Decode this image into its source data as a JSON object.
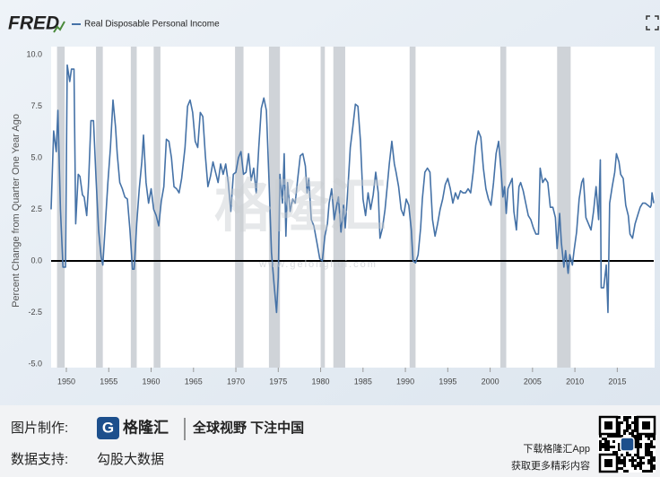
{
  "chart_data": {
    "type": "line",
    "logo": "FRED",
    "ylabel": "Percent Change from Quarter One Year Ago",
    "xlim": [
      1948.2,
      2019.3
    ],
    "xticks": [
      1950,
      1955,
      1960,
      1965,
      1970,
      1975,
      1980,
      1985,
      1990,
      1995,
      2000,
      2005,
      2010,
      2015
    ],
    "ylim": [
      -5,
      10
    ],
    "yticks": [
      {
        "value": -5,
        "label": "-5.0"
      },
      -2.5,
      {
        "value": 0,
        "label": "0.0"
      },
      2.5,
      {
        "value": 5,
        "label": "5.0"
      },
      7.5,
      {
        "value": 10,
        "label": "10.0"
      }
    ],
    "grid": false,
    "zero_line": true,
    "recession_color": "#cfd3d8",
    "recessions": [
      [
        1948.9,
        1949.8
      ],
      [
        1953.5,
        1954.3
      ],
      [
        1957.6,
        1958.3
      ],
      [
        1960.3,
        1961.1
      ],
      [
        1969.9,
        1970.9
      ],
      [
        1973.9,
        1975.2
      ],
      [
        1980.0,
        1980.5
      ],
      [
        1981.5,
        1982.9
      ],
      [
        1990.5,
        1991.2
      ],
      [
        2001.2,
        2001.9
      ],
      [
        2007.9,
        2009.5
      ]
    ],
    "x": [
      1948.2,
      1948.5,
      1948.8,
      1949.0,
      1949.3,
      1949.6,
      1949.9,
      1950.1,
      1950.4,
      1950.6,
      1950.9,
      1951.1,
      1951.4,
      1951.6,
      1951.9,
      1952.1,
      1952.4,
      1952.6,
      1952.9,
      1953.2,
      1953.5,
      1953.8,
      1954.1,
      1954.3,
      1954.6,
      1954.9,
      1955.2,
      1955.5,
      1955.8,
      1956.0,
      1956.3,
      1956.6,
      1956.9,
      1957.2,
      1957.5,
      1957.8,
      1958.0,
      1958.3,
      1958.6,
      1958.9,
      1959.1,
      1959.4,
      1959.7,
      1960.0,
      1960.3,
      1960.6,
      1960.9,
      1961.2,
      1961.5,
      1961.8,
      1962.1,
      1962.4,
      1962.7,
      1963.0,
      1963.3,
      1963.6,
      1964.0,
      1964.3,
      1964.6,
      1964.9,
      1965.2,
      1965.5,
      1965.8,
      1966.1,
      1966.4,
      1966.7,
      1967.0,
      1967.3,
      1967.6,
      1967.9,
      1968.2,
      1968.5,
      1968.8,
      1969.1,
      1969.4,
      1969.7,
      1970.0,
      1970.3,
      1970.6,
      1970.9,
      1971.2,
      1971.5,
      1971.8,
      1972.1,
      1972.4,
      1972.7,
      1973.0,
      1973.3,
      1973.6,
      1973.9,
      1974.2,
      1974.5,
      1974.8,
      1975.0,
      1975.2,
      1975.5,
      1975.7,
      1975.9,
      1976.1,
      1976.4,
      1976.7,
      1977.0,
      1977.3,
      1977.6,
      1977.9,
      1978.2,
      1978.4,
      1978.6,
      1978.9,
      1979.2,
      1979.6,
      1979.9,
      1980.2,
      1980.5,
      1980.8,
      1981.0,
      1981.3,
      1981.6,
      1981.9,
      1982.1,
      1982.4,
      1982.7,
      1982.9,
      1983.2,
      1983.5,
      1983.8,
      1984.1,
      1984.4,
      1984.7,
      1985.0,
      1985.3,
      1985.6,
      1985.9,
      1986.2,
      1986.5,
      1986.8,
      1987.0,
      1987.3,
      1987.6,
      1987.9,
      1988.1,
      1988.4,
      1988.7,
      1988.9,
      1989.2,
      1989.5,
      1989.8,
      1990.1,
      1990.4,
      1990.7,
      1990.9,
      1991.2,
      1991.5,
      1991.8,
      1992.0,
      1992.3,
      1992.6,
      1992.9,
      1993.2,
      1993.5,
      1993.8,
      1994.1,
      1994.4,
      1994.7,
      1995.0,
      1995.3,
      1995.6,
      1995.9,
      1996.2,
      1996.5,
      1996.8,
      1997.1,
      1997.4,
      1997.7,
      1998.0,
      1998.3,
      1998.6,
      1998.9,
      1999.2,
      1999.5,
      1999.8,
      2000.1,
      2000.4,
      2000.7,
      2001.0,
      2001.3,
      2001.5,
      2001.7,
      2001.9,
      2002.1,
      2002.4,
      2002.6,
      2002.8,
      2003.1,
      2003.4,
      2003.6,
      2003.9,
      2004.2,
      2004.5,
      2004.8,
      2005.1,
      2005.4,
      2005.7,
      2005.9,
      2006.2,
      2006.5,
      2006.8,
      2007.1,
      2007.4,
      2007.7,
      2007.9,
      2008.2,
      2008.4,
      2008.7,
      2008.9,
      2009.2,
      2009.4,
      2009.7,
      2009.9,
      2010.2,
      2010.5,
      2010.8,
      2011.0,
      2011.3,
      2011.6,
      2011.9,
      2012.2,
      2012.5,
      2012.8,
      2013.0,
      2013.1,
      2013.4,
      2013.7,
      2013.9,
      2014.1,
      2014.4,
      2014.7,
      2014.9,
      2015.2,
      2015.4,
      2015.7,
      2016.0,
      2016.3,
      2016.5,
      2016.8,
      2017.1,
      2017.4,
      2017.7,
      2018.0,
      2018.3,
      2018.6,
      2018.9,
      2019.0,
      2019.1,
      2019.3
    ],
    "series": [
      {
        "name": "Real Disposable Personal Income",
        "color": "#4572a7",
        "values": [
          2.5,
          6.3,
          5.3,
          7.3,
          2.5,
          -0.3,
          -0.3,
          9.5,
          8.7,
          9.3,
          9.3,
          1.8,
          4.2,
          4.1,
          3.2,
          3.1,
          2.2,
          3.6,
          6.8,
          6.8,
          4.0,
          1.5,
          0.2,
          -0.2,
          1.8,
          3.8,
          5.5,
          7.8,
          6.5,
          5.2,
          3.8,
          3.5,
          3.1,
          3.0,
          1.5,
          -0.4,
          -0.4,
          1.8,
          3.5,
          4.8,
          6.1,
          3.8,
          2.8,
          3.5,
          2.5,
          2.2,
          1.7,
          2.9,
          3.6,
          5.9,
          5.8,
          5.0,
          3.6,
          3.5,
          3.3,
          4.0,
          5.5,
          7.5,
          7.8,
          7.2,
          5.8,
          5.5,
          7.2,
          7.0,
          5.1,
          3.6,
          4.1,
          4.8,
          4.3,
          3.8,
          4.7,
          4.2,
          4.7,
          3.8,
          2.4,
          4.2,
          4.3,
          5.0,
          5.3,
          4.2,
          4.3,
          5.2,
          3.9,
          4.5,
          3.3,
          5.5,
          7.4,
          7.9,
          7.3,
          4.0,
          0.4,
          -1.1,
          -2.5,
          -0.8,
          4.2,
          2.8,
          5.2,
          1.2,
          3.8,
          2.4,
          3.0,
          2.8,
          4.0,
          5.1,
          5.2,
          4.6,
          3.3,
          4.0,
          2.0,
          1.7,
          0.8,
          0.1,
          0.0,
          1.2,
          1.8,
          2.8,
          3.5,
          2.0,
          2.7,
          3.1,
          1.4,
          2.7,
          1.6,
          3.4,
          5.5,
          6.5,
          7.6,
          7.5,
          5.8,
          3.0,
          2.2,
          3.3,
          2.5,
          3.2,
          4.3,
          3.3,
          1.1,
          1.6,
          2.5,
          3.8,
          4.7,
          5.8,
          4.7,
          4.3,
          3.6,
          2.5,
          2.2,
          3.0,
          2.7,
          1.5,
          0.0,
          -0.1,
          0.3,
          1.6,
          3.0,
          4.3,
          4.5,
          4.3,
          2.0,
          1.2,
          1.8,
          2.5,
          3.0,
          3.7,
          4.0,
          3.5,
          2.8,
          3.3,
          3.0,
          3.4,
          3.3,
          3.3,
          3.5,
          3.3,
          4.3,
          5.6,
          6.3,
          6.0,
          4.5,
          3.5,
          3.0,
          2.7,
          3.8,
          5.2,
          5.8,
          4.3,
          3.1,
          3.6,
          2.3,
          3.5,
          3.8,
          4.0,
          2.4,
          1.5,
          3.6,
          3.8,
          3.4,
          2.8,
          2.2,
          2.0,
          1.6,
          1.3,
          1.3,
          4.5,
          3.8,
          4.0,
          3.8,
          2.6,
          2.6,
          2.1,
          0.6,
          2.3,
          0.9,
          -0.3,
          0.5,
          -0.6,
          0.3,
          -0.2,
          0.5,
          1.4,
          3.0,
          3.8,
          4.0,
          2.1,
          1.8,
          1.5,
          2.4,
          3.6,
          2.0,
          4.9,
          -1.3,
          -1.3,
          -0.2,
          -2.5,
          2.8,
          3.6,
          4.3,
          5.2,
          4.8,
          4.2,
          4.0,
          2.7,
          2.2,
          1.3,
          1.1,
          1.8,
          2.2,
          2.6,
          2.8,
          2.8,
          2.7,
          2.6,
          2.7,
          3.3,
          2.8
        ]
      }
    ]
  },
  "watermark": {
    "brand": "格隆汇",
    "url": "www.gelonghui.com"
  },
  "footer": {
    "made_by_label": "图片制作:",
    "brand": "格隆汇",
    "slogan": "全球视野 下注中国",
    "data_label": "数据支持:",
    "data_source": "勾股大数据",
    "app_line1": "下载格隆汇App",
    "app_line2": "获取更多精彩内容"
  }
}
